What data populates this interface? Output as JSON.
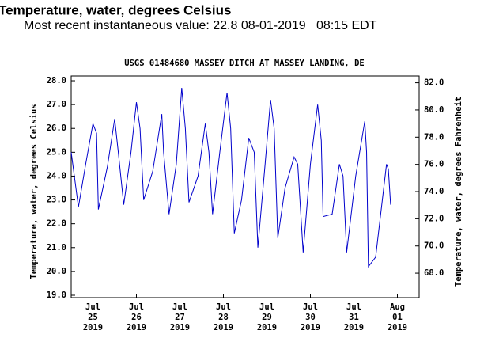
{
  "chart_data": {
    "type": "line",
    "header": "Temperature, water, degrees Celsius",
    "subtitle": "Most recent instantaneous value: 22.8 08-01-2019   08:15 EDT",
    "title": "USGS 01484680 MASSEY DITCH AT MASSEY LANDING, DE",
    "y_label": "Temperature, water, degrees Celsius",
    "y2_label": "Temperature, water, degrees Fahrenheit",
    "xlim": [
      "2019-07-25T00:00",
      "2019-08-02T00:00"
    ],
    "xticks": [
      {
        "value": "2019-07-25T12:00",
        "label": "Jul 25 2019"
      },
      {
        "value": "2019-07-26T12:00",
        "label": "Jul 26 2019"
      },
      {
        "value": "2019-07-27T12:00",
        "label": "Jul 27 2019"
      },
      {
        "value": "2019-07-28T12:00",
        "label": "Jul 28 2019"
      },
      {
        "value": "2019-07-29T12:00",
        "label": "Jul 29 2019"
      },
      {
        "value": "2019-07-30T12:00",
        "label": "Jul 30 2019"
      },
      {
        "value": "2019-07-31T12:00",
        "label": "Jul 31 2019"
      },
      {
        "value": "2019-08-01T12:00",
        "label": "Aug 01 2019"
      }
    ],
    "ylim": [
      18.9,
      28.2
    ],
    "yticks": [
      {
        "value": 19,
        "label": "19.0"
      },
      {
        "value": 20,
        "label": "20.0"
      },
      {
        "value": 21,
        "label": "21.0"
      },
      {
        "value": 22,
        "label": "22.0"
      },
      {
        "value": 23,
        "label": "23.0"
      },
      {
        "value": 24,
        "label": "24.0"
      },
      {
        "value": 25,
        "label": "25.0"
      },
      {
        "value": 26,
        "label": "26.0"
      },
      {
        "value": 27,
        "label": "27.0"
      },
      {
        "value": 28,
        "label": "28.0"
      }
    ],
    "y2lim": [
      66.2,
      82.5
    ],
    "y2ticks": [
      {
        "value": 68,
        "label": "68.0"
      },
      {
        "value": 70,
        "label": "70.0"
      },
      {
        "value": 72,
        "label": "72.0"
      },
      {
        "value": 74,
        "label": "74.0"
      },
      {
        "value": 76,
        "label": "76.0"
      },
      {
        "value": 78,
        "label": "78.0"
      },
      {
        "value": 80,
        "label": "80.0"
      },
      {
        "value": 82,
        "label": "82.0"
      }
    ],
    "grid": false,
    "x": [
      "2019-07-25T00:00",
      "2019-07-25T04:00",
      "2019-07-25T08:00",
      "2019-07-25T12:00",
      "2019-07-25T14:00",
      "2019-07-25T15:00",
      "2019-07-25T20:00",
      "2019-07-26T00:00",
      "2019-07-26T02:00",
      "2019-07-26T05:00",
      "2019-07-26T09:00",
      "2019-07-26T12:00",
      "2019-07-26T14:00",
      "2019-07-26T16:00",
      "2019-07-26T21:00",
      "2019-07-27T02:00",
      "2019-07-27T03:00",
      "2019-07-27T06:00",
      "2019-07-27T10:00",
      "2019-07-27T13:00",
      "2019-07-27T15:00",
      "2019-07-27T17:00",
      "2019-07-27T22:00",
      "2019-07-28T02:00",
      "2019-07-28T04:00",
      "2019-07-28T06:00",
      "2019-07-28T10:00",
      "2019-07-28T14:00",
      "2019-07-28T16:00",
      "2019-07-28T18:00",
      "2019-07-28T22:00",
      "2019-07-29T02:00",
      "2019-07-29T05:00",
      "2019-07-29T07:00",
      "2019-07-29T11:00",
      "2019-07-29T14:00",
      "2019-07-29T16:00",
      "2019-07-29T18:00",
      "2019-07-29T22:00",
      "2019-07-30T03:00",
      "2019-07-30T05:00",
      "2019-07-30T08:00",
      "2019-07-30T12:00",
      "2019-07-30T16:00",
      "2019-07-30T18:00",
      "2019-07-30T19:00",
      "2019-07-31T00:00",
      "2019-07-31T04:00",
      "2019-07-31T06:00",
      "2019-07-31T08:00",
      "2019-07-31T13:00",
      "2019-07-31T18:00",
      "2019-07-31T19:00",
      "2019-07-31T20:00",
      "2019-08-01T00:00",
      "2019-08-01T06:00",
      "2019-08-01T07:00",
      "2019-08-01T08:15"
    ],
    "series": [
      {
        "name": "Temperature, water, degrees Celsius",
        "color": "#0000cc",
        "values": [
          25.0,
          22.7,
          24.5,
          26.2,
          25.8,
          22.6,
          24.4,
          26.4,
          25.0,
          22.8,
          25.0,
          27.1,
          26.0,
          23.0,
          24.2,
          26.6,
          25.0,
          22.4,
          24.5,
          27.7,
          26.0,
          22.9,
          24.0,
          26.2,
          25.0,
          22.4,
          25.0,
          27.5,
          26.0,
          21.6,
          23.0,
          25.6,
          25.0,
          21.0,
          24.5,
          27.2,
          26.0,
          21.4,
          23.5,
          24.8,
          24.5,
          20.8,
          24.5,
          27.0,
          25.5,
          22.3,
          22.4,
          24.5,
          24.0,
          20.8,
          24.0,
          26.3,
          25.0,
          20.2,
          20.6,
          24.5,
          24.3,
          22.8
        ]
      }
    ]
  }
}
